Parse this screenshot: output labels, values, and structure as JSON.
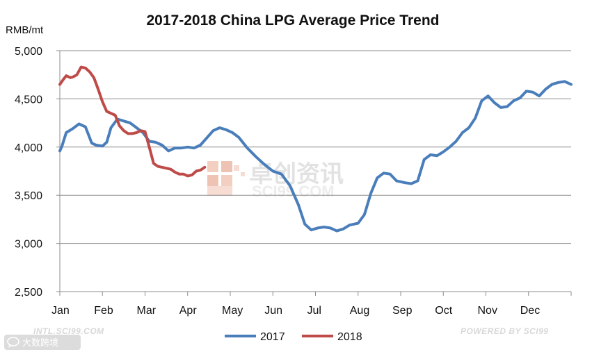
{
  "chart_data": {
    "type": "line",
    "title": "2017-2018 China LPG Average Price Trend",
    "ylabel": "RMB/mt",
    "xlabel": "",
    "ylim": [
      2500,
      5000
    ],
    "yticks": [
      2500,
      3000,
      3500,
      4000,
      4500,
      5000
    ],
    "ytick_labels": [
      "2,500",
      "3,000",
      "3,500",
      "4,000",
      "4,500",
      "5,000"
    ],
    "xlim": [
      0,
      12
    ],
    "x_categories": [
      "Jan",
      "Feb",
      "Mar",
      "Apr",
      "May",
      "Jun",
      "Jul",
      "Aug",
      "Sep",
      "Oct",
      "Nov",
      "Dec"
    ],
    "grid": "horizontal",
    "legend_position": "bottom",
    "series": [
      {
        "name": "2017",
        "color": "#4a7ebb",
        "x": [
          0,
          0.05,
          0.15,
          0.3,
          0.45,
          0.6,
          0.75,
          0.85,
          1.0,
          1.1,
          1.2,
          1.35,
          1.5,
          1.65,
          1.8,
          1.95,
          2.1,
          2.25,
          2.4,
          2.55,
          2.7,
          2.85,
          3.0,
          3.15,
          3.3,
          3.5,
          3.6,
          3.75,
          3.9,
          4.05,
          4.2,
          4.4,
          4.6,
          4.8,
          5.0,
          5.2,
          5.4,
          5.6,
          5.75,
          5.9,
          6.05,
          6.2,
          6.35,
          6.5,
          6.65,
          6.8,
          7.0,
          7.15,
          7.3,
          7.45,
          7.6,
          7.75,
          7.9,
          8.1,
          8.25,
          8.4,
          8.55,
          8.7,
          8.85,
          9.0,
          9.15,
          9.3,
          9.45,
          9.6,
          9.75,
          9.9,
          10.05,
          10.2,
          10.35,
          10.5,
          10.65,
          10.8,
          10.95,
          11.1,
          11.25,
          11.4,
          11.55,
          11.7,
          11.85,
          12.0
        ],
        "values": [
          3960,
          4010,
          4150,
          4190,
          4240,
          4210,
          4040,
          4020,
          4010,
          4050,
          4200,
          4290,
          4270,
          4250,
          4200,
          4150,
          4060,
          4050,
          4020,
          3960,
          3990,
          3990,
          4000,
          3990,
          4020,
          4120,
          4170,
          4200,
          4180,
          4150,
          4100,
          3990,
          3900,
          3820,
          3750,
          3720,
          3600,
          3400,
          3200,
          3140,
          3160,
          3170,
          3160,
          3130,
          3150,
          3190,
          3210,
          3300,
          3520,
          3680,
          3730,
          3720,
          3650,
          3630,
          3620,
          3650,
          3870,
          3920,
          3910,
          3950,
          4000,
          4060,
          4150,
          4200,
          4300,
          4480,
          4530,
          4460,
          4410,
          4420,
          4480,
          4510,
          4580,
          4570,
          4530,
          4600,
          4650,
          4670,
          4680,
          4650
        ]
      },
      {
        "name": "2018",
        "color": "#be4b48",
        "x": [
          0,
          0.08,
          0.15,
          0.25,
          0.32,
          0.4,
          0.5,
          0.6,
          0.7,
          0.8,
          0.9,
          1.0,
          1.1,
          1.2,
          1.3,
          1.4,
          1.5,
          1.6,
          1.7,
          1.8,
          1.9,
          2.0,
          2.1,
          2.2,
          2.3,
          2.4,
          2.5,
          2.6,
          2.7,
          2.8,
          2.9,
          3.0,
          3.1,
          3.2,
          3.3,
          3.4
        ],
        "values": [
          4650,
          4700,
          4740,
          4720,
          4730,
          4750,
          4830,
          4820,
          4780,
          4720,
          4600,
          4470,
          4370,
          4350,
          4330,
          4220,
          4170,
          4140,
          4140,
          4150,
          4170,
          4160,
          4000,
          3830,
          3800,
          3790,
          3780,
          3770,
          3740,
          3720,
          3720,
          3700,
          3710,
          3750,
          3760,
          3790
        ]
      }
    ]
  },
  "watermark": {
    "cn": "卓创资讯",
    "en": "SCI99.COM"
  },
  "footer": {
    "left": "INTL.SCI99.COM",
    "right": "POWERED BY SCI99",
    "badge": "大数跨境"
  }
}
